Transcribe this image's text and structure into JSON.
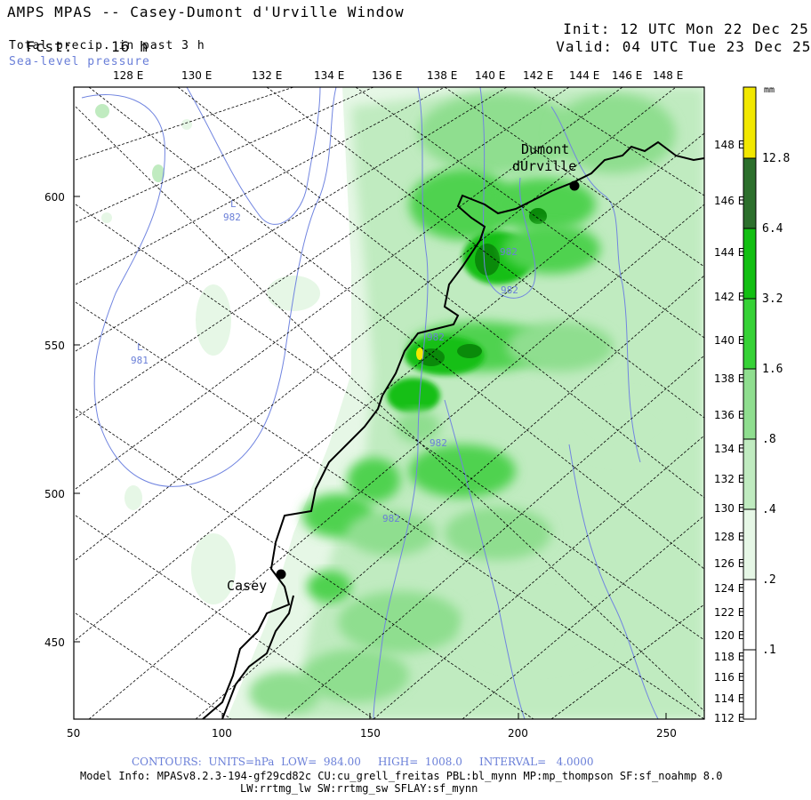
{
  "header": {
    "title": "AMPS MPAS -- Casey-Dumont d'Urville Window",
    "fcst_label": "Fcst:",
    "fcst_value": "16 h",
    "init_label": "Init:",
    "init_value": "12 UTC Mon 22 Dec 25",
    "valid_label": "Valid:",
    "valid_value": "04 UTC Tue 23 Dec 25",
    "field": "Total precip. in past 3 h",
    "overlay": "Sea-level pressure"
  },
  "map": {
    "x_ticks": [
      "50",
      "100",
      "150",
      "200",
      "250"
    ],
    "y_ticks": [
      "600",
      "550",
      "500",
      "450"
    ],
    "top_lon_labels": [
      "128 E",
      "130 E",
      "132 E",
      "134 E",
      "136 E",
      "138 E",
      "140 E",
      "142 E",
      "144 E",
      "146 E",
      "148 E"
    ],
    "right_lon_labels": [
      "148 E",
      "146 E",
      "144 E",
      "142 E",
      "140 E",
      "138 E",
      "136 E",
      "134 E",
      "132 E",
      "130 E",
      "128 E",
      "126 E",
      "124 E",
      "122 E",
      "120 E",
      "118 E",
      "116 E",
      "114 E",
      "112 E"
    ],
    "stations": [
      {
        "name": "Dumont\nd'Urville",
        "line1": "Dumont",
        "line2": "dUrville"
      },
      {
        "name": "Casey"
      }
    ],
    "pressure_labels": [
      "L",
      "982",
      "L",
      "981",
      "982",
      "982",
      "982",
      "982",
      "982"
    ],
    "colors": {
      "precip_01": "#ffffff",
      "precip_02": "#e6f7e6",
      "precip_04": "#c0ebc0",
      "precip_08": "#8fde8f",
      "precip_16": "#4fd24f",
      "precip_32": "#12bf12",
      "precip_64": "#0a8a0a",
      "precip_128": "#2c6f2c",
      "precip_max": "#f2e800",
      "isobar": "#7185e0",
      "coast": "#000000",
      "grid": "#000000"
    }
  },
  "colorbar": {
    "unit": "mm",
    "levels": [
      "12.8",
      "6.4",
      "3.2",
      "1.6",
      ".8",
      ".4",
      ".2",
      ".1"
    ]
  },
  "footer": {
    "contours": "CONTOURS:  UNITS=hPa  LOW=  984.00     HIGH=  1008.0     INTERVAL=   4.0000",
    "model_info": "Model Info: MPASv8.2.3-194-gf29cd82c CU:cu_grell_freitas PBL:bl_mynn MP:mp_thompson SF:sf_noahmp 8.0",
    "model_info2": "LW:rrtmg_lw SW:rrtmg_sw SFLAY:sf_mynn"
  }
}
